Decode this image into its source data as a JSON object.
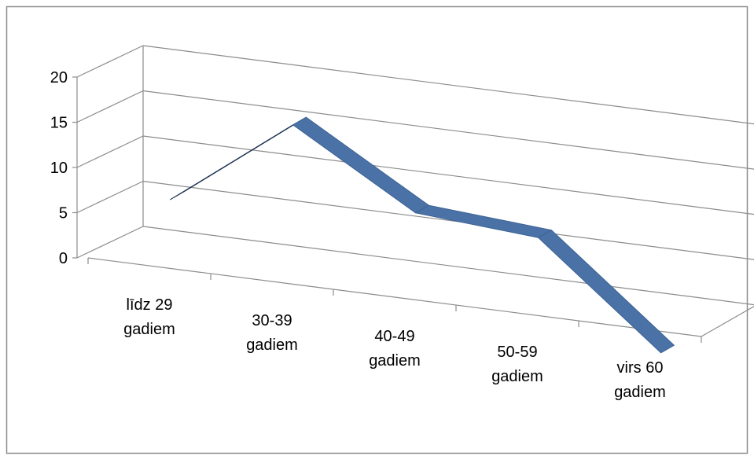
{
  "chart_data": {
    "type": "line",
    "style": "3d-ribbon",
    "title": "",
    "xlabel": "",
    "ylabel": "",
    "categories": [
      [
        "līdz 29",
        "gadiem"
      ],
      [
        "30-39",
        "gadiem"
      ],
      [
        "40-49",
        "gadiem"
      ],
      [
        "50-59",
        "gadiem"
      ],
      [
        "virs 60",
        "gadiem"
      ]
    ],
    "series": [
      {
        "values": [
          6,
          16,
          8,
          7,
          -4
        ],
        "color": "#4a72a6"
      }
    ],
    "ylim": [
      0,
      20
    ],
    "yticks": [
      0,
      5,
      10,
      15,
      20
    ],
    "grid": true,
    "legend": "none"
  }
}
